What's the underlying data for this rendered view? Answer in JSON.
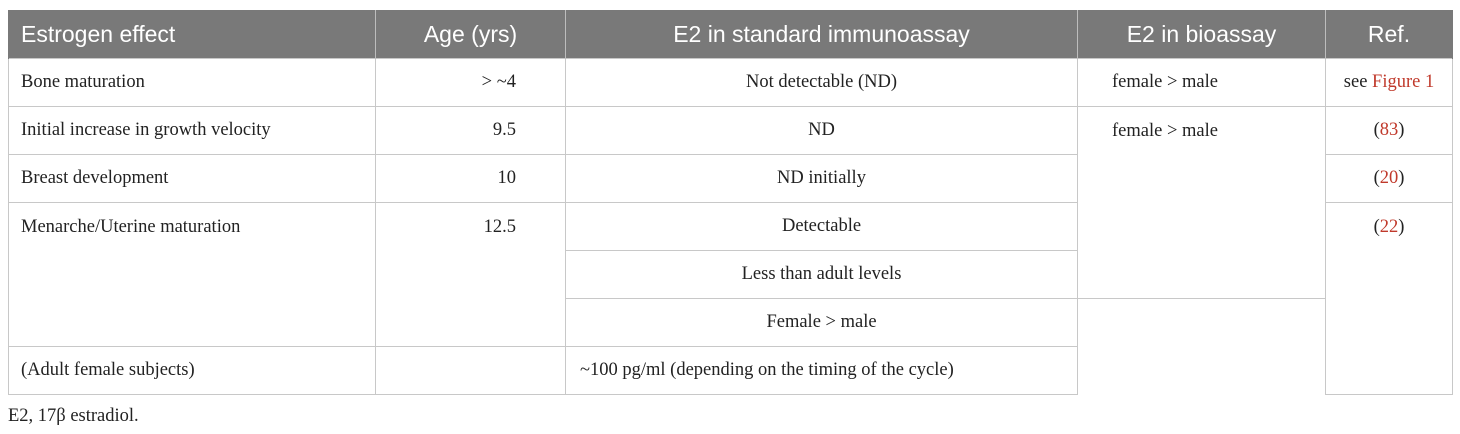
{
  "table": {
    "headers": [
      "Estrogen effect",
      "Age (yrs)",
      "E2 in standard immunoassay",
      "E2 in bioassay",
      "Ref."
    ],
    "rows": [
      {
        "effect": "Bone maturation",
        "age": "> ~4",
        "immuno": "Not detectable (ND)",
        "bio": "female > male",
        "ref_prefix": "see ",
        "ref_link": "Figure 1"
      },
      {
        "effect": "Initial increase in growth velocity",
        "age": "9.5",
        "immuno": "ND",
        "bio": "female > male",
        "ref_open": "(",
        "ref_link": "83",
        "ref_close": ")"
      },
      {
        "effect": "Breast development",
        "age": "10",
        "immuno": "ND initially",
        "ref_open": "(",
        "ref_link": "20",
        "ref_close": ")"
      },
      {
        "effect": "Menarche/Uterine maturation",
        "age": "12.5",
        "immuno": [
          "Detectable",
          "Less than adult levels",
          "Female > male"
        ],
        "ref_open": "(",
        "ref_link": "22",
        "ref_close": ")"
      },
      {
        "effect": "(Adult female subjects)",
        "age": "",
        "immuno": "~100 pg/ml (depending on the timing of the cycle)"
      }
    ]
  },
  "footnote": "E2, 17β estradiol.",
  "colors": {
    "header_bg": "#797979",
    "header_text": "#ffffff",
    "link": "#c0392b",
    "border": "#c8c8c8"
  }
}
